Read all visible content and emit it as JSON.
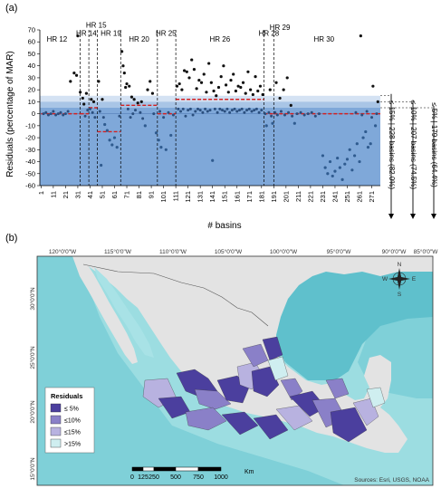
{
  "chart_data": [
    {
      "type": "scatter",
      "panel_label": "(a)",
      "xlabel": "# basins",
      "ylabel": "Residuals (percentage of MAR)",
      "xlim": [
        0,
        278
      ],
      "ylim": [
        -60,
        70
      ],
      "xticks": [
        "1",
        "11",
        "21",
        "31",
        "41",
        "51",
        "61",
        "71",
        "81",
        "91",
        "101",
        "111",
        "121",
        "131",
        "141",
        "151",
        "161",
        "171",
        "181",
        "191",
        "201",
        "211",
        "221",
        "231",
        "241",
        "251",
        "261",
        "271"
      ],
      "yticks": [
        70,
        60,
        50,
        40,
        30,
        20,
        10,
        0,
        -10,
        -20,
        -30,
        -40,
        -50,
        -60
      ],
      "grid": false,
      "bands": [
        {
          "label": "≤ 15%",
          "range": [
            -60,
            15
          ],
          "color": "#d4e2f3"
        },
        {
          "label": "≤ 10%",
          "range": [
            -60,
            10
          ],
          "color": "#a9c5e6"
        },
        {
          "label": "≤ 5%",
          "range": [
            -60,
            5
          ],
          "color": "#7fa8d9"
        }
      ],
      "region_separators": [
        33,
        40,
        47,
        66,
        96,
        111,
        183,
        191
      ],
      "regions": [
        {
          "label": "HR 12",
          "x": 14,
          "y": 60
        },
        {
          "label": "HR 14",
          "x": 38,
          "y": 65
        },
        {
          "label": "HR 15",
          "x": 46,
          "y": 72
        },
        {
          "label": "HR 19",
          "x": 58,
          "y": 65
        },
        {
          "label": "HR 20",
          "x": 81,
          "y": 60
        },
        {
          "label": "HR 25",
          "x": 103,
          "y": 65
        },
        {
          "label": "HR 26",
          "x": 147,
          "y": 60
        },
        {
          "label": "HR 28",
          "x": 187,
          "y": 65
        },
        {
          "label": "HR 29",
          "x": 196,
          "y": 70
        },
        {
          "label": "HR 30",
          "x": 232,
          "y": 60
        }
      ],
      "regional_means": [
        {
          "x0": 1,
          "x1": 33,
          "y": 0
        },
        {
          "x0": 33,
          "x1": 40,
          "y": 0
        },
        {
          "x0": 40,
          "x1": 47,
          "y": 5
        },
        {
          "x0": 47,
          "x1": 66,
          "y": -15
        },
        {
          "x0": 66,
          "x1": 96,
          "y": 7
        },
        {
          "x0": 96,
          "x1": 111,
          "y": 0
        },
        {
          "x0": 111,
          "x1": 183,
          "y": 12
        },
        {
          "x0": 183,
          "x1": 191,
          "y": 0
        },
        {
          "x0": 191,
          "x1": 278,
          "y": 0
        }
      ],
      "series": [
        {
          "points_outside_5pct": [
            [
              25,
              27
            ],
            [
              28,
              34
            ],
            [
              30,
              32
            ],
            [
              31,
              65
            ],
            [
              33,
              18
            ],
            [
              35,
              13
            ],
            [
              36,
              8
            ],
            [
              38,
              17
            ],
            [
              42,
              12
            ],
            [
              44,
              10
            ],
            [
              48,
              27
            ],
            [
              50,
              -43
            ],
            [
              51,
              12
            ],
            [
              53,
              -9
            ],
            [
              55,
              -14
            ],
            [
              57,
              -22
            ],
            [
              59,
              -26
            ],
            [
              61,
              -20
            ],
            [
              63,
              -28
            ],
            [
              67,
              52
            ],
            [
              68,
              40
            ],
            [
              69,
              34
            ],
            [
              70,
              22
            ],
            [
              71,
              25
            ],
            [
              73,
              23
            ],
            [
              75,
              14
            ],
            [
              77,
              12
            ],
            [
              80,
              9
            ],
            [
              83,
              10
            ],
            [
              86,
              -10
            ],
            [
              88,
              20
            ],
            [
              90,
              27
            ],
            [
              92,
              17
            ],
            [
              95,
              -16
            ],
            [
              97,
              -22
            ],
            [
              99,
              -28
            ],
            [
              103,
              -30
            ],
            [
              107,
              -18
            ],
            [
              112,
              23
            ],
            [
              114,
              25
            ],
            [
              116,
              20
            ],
            [
              118,
              36
            ],
            [
              120,
              35
            ],
            [
              122,
              30
            ],
            [
              124,
              45
            ],
            [
              126,
              37
            ],
            [
              128,
              21
            ],
            [
              130,
              28
            ],
            [
              132,
              26
            ],
            [
              134,
              33
            ],
            [
              136,
              18
            ],
            [
              138,
              42
            ],
            [
              140,
              26
            ],
            [
              142,
              19
            ],
            [
              144,
              15
            ],
            [
              146,
              22
            ],
            [
              148,
              31
            ],
            [
              150,
              40
            ],
            [
              152,
              24
            ],
            [
              154,
              18
            ],
            [
              156,
              28
            ],
            [
              158,
              33
            ],
            [
              160,
              19
            ],
            [
              162,
              23
            ],
            [
              164,
              22
            ],
            [
              166,
              26
            ],
            [
              168,
              17
            ],
            [
              170,
              35
            ],
            [
              172,
              20
            ],
            [
              174,
              16
            ],
            [
              176,
              31
            ],
            [
              178,
              19
            ],
            [
              180,
              23
            ],
            [
              182,
              16
            ],
            [
              185,
              -10
            ],
            [
              188,
              20
            ],
            [
              190,
              -8
            ],
            [
              193,
              26
            ],
            [
              196,
              13
            ],
            [
              199,
              20
            ],
            [
              202,
              30
            ],
            [
              205,
              7
            ],
            [
              208,
              -8
            ],
            [
              231,
              -35
            ],
            [
              233,
              -45
            ],
            [
              235,
              -50
            ],
            [
              237,
              -40
            ],
            [
              239,
              -52
            ],
            [
              241,
              -48
            ],
            [
              243,
              -37
            ],
            [
              245,
              -45
            ],
            [
              247,
              -55
            ],
            [
              249,
              -42
            ],
            [
              251,
              -38
            ],
            [
              253,
              -30
            ],
            [
              255,
              -47
            ],
            [
              257,
              -35
            ],
            [
              259,
              -25
            ],
            [
              261,
              -40
            ],
            [
              262,
              65
            ],
            [
              264,
              -20
            ],
            [
              266,
              -15
            ],
            [
              268,
              -28
            ],
            [
              270,
              -25
            ],
            [
              272,
              23
            ],
            [
              274,
              -10
            ],
            [
              276,
              10
            ],
            [
              141,
              -39
            ]
          ]
        },
        {
          "points_within_5pct": [
            [
              3,
              0
            ],
            [
              5,
              1
            ],
            [
              7,
              -1
            ],
            [
              9,
              0
            ],
            [
              11,
              2
            ],
            [
              13,
              -1
            ],
            [
              15,
              0
            ],
            [
              17,
              1
            ],
            [
              19,
              -1
            ],
            [
              21,
              0
            ],
            [
              23,
              2
            ],
            [
              37,
              -2
            ],
            [
              39,
              3
            ],
            [
              41,
              4
            ],
            [
              43,
              1
            ],
            [
              45,
              -3
            ],
            [
              49,
              2
            ],
            [
              52,
              -3
            ],
            [
              65,
              -2
            ],
            [
              72,
              4
            ],
            [
              74,
              -3
            ],
            [
              76,
              0
            ],
            [
              78,
              3
            ],
            [
              82,
              1
            ],
            [
              84,
              -4
            ],
            [
              93,
              0
            ],
            [
              98,
              2
            ],
            [
              101,
              -3
            ],
            [
              105,
              1
            ],
            [
              109,
              -1
            ],
            [
              113,
              4
            ],
            [
              115,
              2
            ],
            [
              117,
              4
            ],
            [
              119,
              -2
            ],
            [
              121,
              3
            ],
            [
              123,
              4
            ],
            [
              125,
              -1
            ],
            [
              127,
              2
            ],
            [
              129,
              4
            ],
            [
              131,
              3
            ],
            [
              133,
              1
            ],
            [
              135,
              4
            ],
            [
              137,
              2
            ],
            [
              139,
              3
            ],
            [
              143,
              4
            ],
            [
              145,
              1
            ],
            [
              147,
              4
            ],
            [
              149,
              3
            ],
            [
              151,
              2
            ],
            [
              153,
              4
            ],
            [
              155,
              1
            ],
            [
              157,
              3
            ],
            [
              159,
              4
            ],
            [
              161,
              2
            ],
            [
              163,
              3
            ],
            [
              165,
              4
            ],
            [
              167,
              1
            ],
            [
              169,
              3
            ],
            [
              171,
              4
            ],
            [
              173,
              2
            ],
            [
              175,
              3
            ],
            [
              177,
              4
            ],
            [
              179,
              1
            ],
            [
              181,
              3
            ],
            [
              184,
              0
            ],
            [
              187,
              1
            ],
            [
              189,
              -2
            ],
            [
              192,
              1
            ],
            [
              194,
              -1
            ],
            [
              197,
              2
            ],
            [
              200,
              -1
            ],
            [
              203,
              1
            ],
            [
              206,
              -2
            ],
            [
              210,
              0
            ],
            [
              213,
              1
            ],
            [
              216,
              -1
            ],
            [
              219,
              0
            ],
            [
              222,
              1
            ],
            [
              225,
              -2
            ],
            [
              228,
              0
            ],
            [
              258,
              1
            ],
            [
              263,
              -1
            ],
            [
              267,
              2
            ],
            [
              271,
              -3
            ],
            [
              275,
              0
            ]
          ]
        }
      ],
      "stats": [
        {
          "label": "≤ 15% | 228 basins (82.0%)"
        },
        {
          "label": "≤ 10% | 207 basins (74.5%)"
        },
        {
          "label": "≤ 5% | 179 basins (64.4%)"
        }
      ]
    },
    {
      "type": "map",
      "panel_label": "(b)",
      "longitude_ticks": [
        "120°0'0\"W",
        "115°0'0\"W",
        "110°0'0\"W",
        "105°0'0\"W",
        "100°0'0\"W",
        "95°0'0\"W",
        "90°0'0\"W",
        "85°0'0\"W"
      ],
      "latitude_ticks": [
        "30°0'0\"N",
        "25°0'0\"N",
        "20°0'0\"N",
        "15°0'0\"N"
      ],
      "legend": {
        "title": "Residuals",
        "items": [
          {
            "label": "≤ 5%",
            "color": "#4b3f9e"
          },
          {
            "label": "≤10%",
            "color": "#8a80c8"
          },
          {
            "label": "≤15%",
            "color": "#b8b2e0"
          },
          {
            "label": ">15%",
            "color": "#cfeef0"
          }
        ]
      },
      "scalebar": {
        "labels": [
          "0",
          "125",
          "250",
          "500",
          "750",
          "1000"
        ],
        "unit": "Km"
      },
      "compass": {
        "n": "N",
        "s": "S",
        "e": "E",
        "w": "W"
      },
      "credits": "Sources: Esri, USGS, NOAA"
    }
  ]
}
